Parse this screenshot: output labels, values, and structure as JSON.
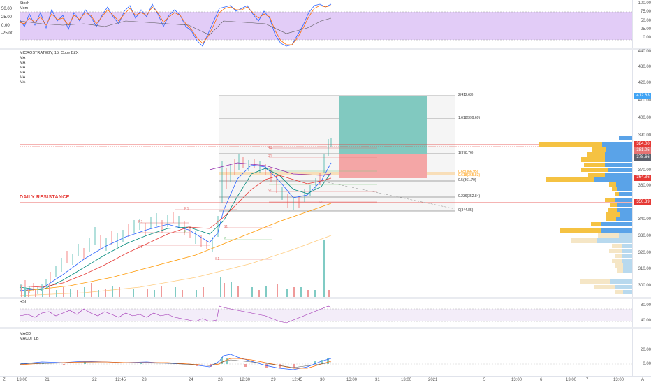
{
  "stoch": {
    "legend": [
      "Stoch",
      "Mom"
    ],
    "ticks": [
      "100.00",
      "75.00",
      "50.00",
      "25.00",
      "0.00",
      "-25.00"
    ]
  },
  "main": {
    "legend": [
      "MICROSTRATEGY, 15, Cboe BZX",
      "MA",
      "MA",
      "MA",
      "MA",
      "MA",
      "MA"
    ],
    "ticks": [
      "440.00",
      "430.00",
      "420.00",
      "410.00",
      "400.00",
      "390.00",
      "380.00",
      "370.00",
      "360.00",
      "350.00",
      "340.00",
      "330.00",
      "320.00",
      "310.00",
      "300.00"
    ],
    "price_tags": [
      {
        "text": "412.63",
        "color": "#42a5f5"
      },
      {
        "text": "384.00",
        "color": "#e53935"
      },
      {
        "text": "381.05",
        "color": "#e57373"
      },
      {
        "text": "378.66",
        "color": "#5d606b"
      },
      {
        "text": "364.36",
        "color": "#e53935"
      },
      {
        "text": "350.39",
        "color": "#e53935"
      }
    ],
    "fib_labels": [
      "2(412.63)",
      "1.618(399.69)",
      "1(378.76)",
      "0.618(365.83)",
      "0.5(361.79)",
      "0.236(352.84)",
      "0(344.85)"
    ],
    "fib_small": [
      "0.65(366.95)",
      "0.618(365.83)"
    ],
    "daily_resistance": "DAILY RESISTANCE",
    "pivot_labels": [
      "R1",
      "R1",
      "R1",
      "P",
      "P",
      "S1",
      "S1",
      "S1",
      "S1",
      "R1",
      "P",
      "S1"
    ]
  },
  "rsi": {
    "legend": [
      "RSI"
    ],
    "ticks": [
      "80.00",
      "40.00"
    ]
  },
  "macd": {
    "legend": [
      "MACD",
      "MACDI_LB"
    ],
    "ticks": [
      "20.00",
      "0.00"
    ]
  },
  "xaxis": {
    "labels": [
      "13:00",
      "21",
      "22",
      "12:45",
      "23",
      "24",
      "28",
      "12:30",
      "29",
      "12:45",
      "30",
      "13:00",
      "31",
      "13:00",
      "2021",
      "5",
      "13:00",
      "6",
      "13:00",
      "7",
      "13:00",
      "A"
    ]
  },
  "colors": {
    "stoch_bg": "#e2ccf7",
    "rsi_bg": "#f3edf9",
    "tp_box": "#81c9c0",
    "sl_box": "#f4a6a6",
    "resistance": "#e53935"
  }
}
